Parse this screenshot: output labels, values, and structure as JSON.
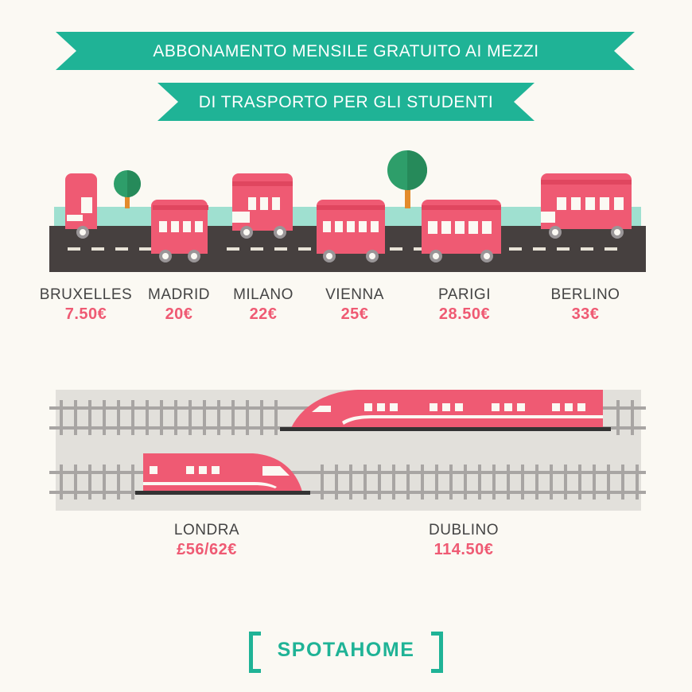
{
  "title": {
    "line1": "ABBONAMENTO MENSILE GRATUITO AI MEZZI",
    "line2": "DI TRASPORTO PER GLI STUDENTI"
  },
  "colors": {
    "ribbon": "#1fb396",
    "vehicle": "#ef5a73",
    "road": "#46403f",
    "grass": "#9fe0d0",
    "price": "#ef5a73",
    "background": "#fbf9f3"
  },
  "bus_cities": [
    {
      "name": "BRUXELLES",
      "price": "7.50€"
    },
    {
      "name": "MADRID",
      "price": "20€"
    },
    {
      "name": "MILANO",
      "price": "22€"
    },
    {
      "name": "VIENNA",
      "price": "25€"
    },
    {
      "name": "PARIGI",
      "price": "28.50€"
    },
    {
      "name": "BERLINO",
      "price": "33€"
    }
  ],
  "train_cities": [
    {
      "name": "LONDRA",
      "price": "£56/62€"
    },
    {
      "name": "DUBLINO",
      "price": "114.50€"
    }
  ],
  "logo": {
    "text": "SPOTAHOME"
  }
}
